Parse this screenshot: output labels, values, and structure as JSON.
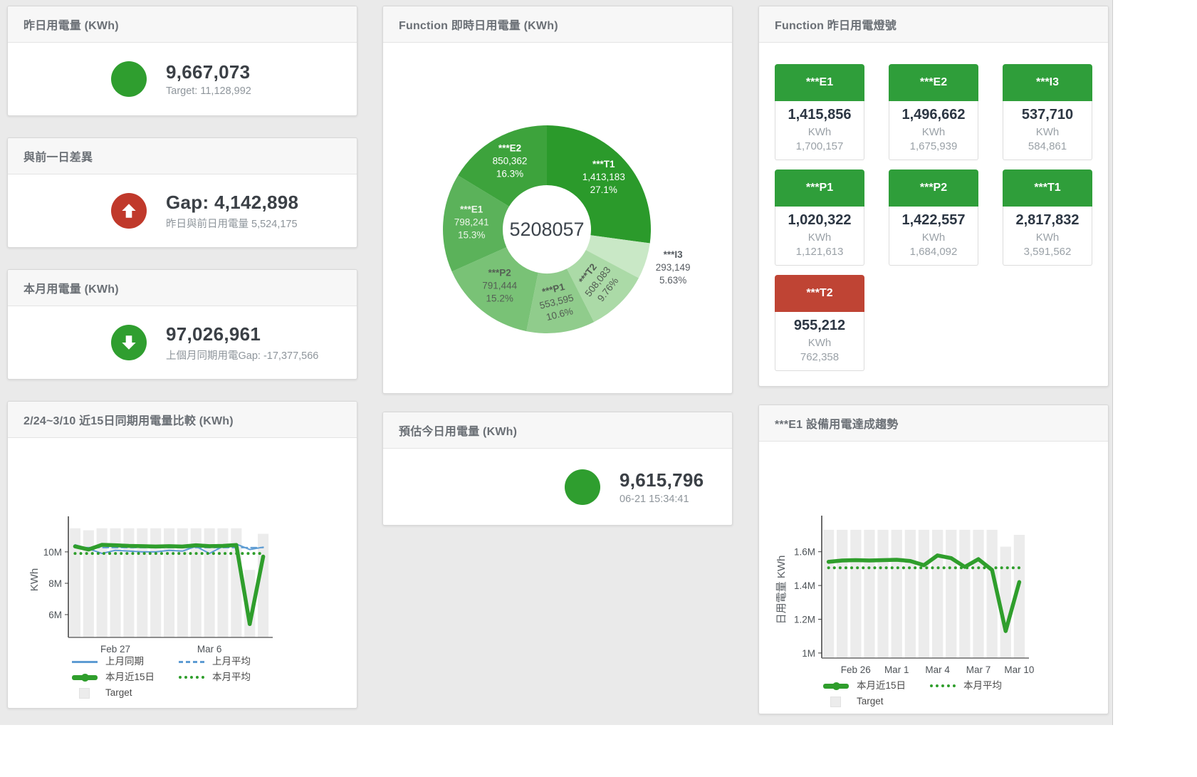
{
  "colors": {
    "green": "#2f9e2f",
    "tile_green": "#2f9e3a",
    "red": "#c0392b",
    "tile_red": "#bf4434",
    "blue": "#5e9cd3",
    "target_gray": "#ececec"
  },
  "panels": {
    "yesterday": {
      "title": "昨日用電量 (KWh)",
      "value": "9,667,073",
      "subtitle": "Target: 11,128,992"
    },
    "gap": {
      "title": "與前一日差異",
      "value": "Gap: 4,142,898",
      "subtitle": "昨日與前日用電量 5,524,175",
      "direction": "up"
    },
    "month": {
      "title": "本月用電量 (KWh)",
      "value": "97,026,961",
      "subtitle": "上個月同期用電Gap: -17,377,566",
      "direction": "down"
    },
    "estimate": {
      "title": "預估今日用電量 (KWh)",
      "value": "9,615,796",
      "subtitle": "06-21 15:34:41"
    },
    "lights": {
      "title": "Function 昨日用電燈號",
      "tiles": [
        {
          "label": "***E1",
          "value": "1,415,856",
          "unit": "KWh",
          "target": "1,700,157",
          "status": "green"
        },
        {
          "label": "***E2",
          "value": "1,496,662",
          "unit": "KWh",
          "target": "1,675,939",
          "status": "green"
        },
        {
          "label": "***I3",
          "value": "537,710",
          "unit": "KWh",
          "target": "584,861",
          "status": "green"
        },
        {
          "label": "***P1",
          "value": "1,020,322",
          "unit": "KWh",
          "target": "1,121,613",
          "status": "green"
        },
        {
          "label": "***P2",
          "value": "1,422,557",
          "unit": "KWh",
          "target": "1,684,092",
          "status": "green"
        },
        {
          "label": "***T1",
          "value": "2,817,832",
          "unit": "KWh",
          "target": "3,591,562",
          "status": "green"
        },
        {
          "label": "***T2",
          "value": "955,212",
          "unit": "KWh",
          "target": "762,358",
          "status": "red"
        }
      ]
    }
  },
  "chart_data": [
    {
      "id": "realtime-donut",
      "type": "pie",
      "title": "Function 即時日用電量 (KWh)",
      "center_total": "5208057",
      "unit": "KWh",
      "slices": [
        {
          "name": "***T1",
          "value": 1413183,
          "value_label": "1,413,183",
          "pct": "27.1%",
          "color": "#2b9a2b",
          "label_color": "#ffffff"
        },
        {
          "name": "***I3",
          "value": 293149,
          "value_label": "293,149",
          "pct": "5.63%",
          "color": "#c9e8c6",
          "label_color": "#575c62",
          "label_outside": true
        },
        {
          "name": "***T2",
          "value": 508083,
          "value_label": "508,083",
          "pct": "9.76%",
          "color": "#abdaa7",
          "label_color": "#525c52",
          "rotate": -52
        },
        {
          "name": "***P1",
          "value": 553595,
          "value_label": "553,595",
          "pct": "10.6%",
          "color": "#90cc8c",
          "label_color": "#525c52",
          "rotate": -14
        },
        {
          "name": "***P2",
          "value": 791444,
          "value_label": "791,444",
          "pct": "15.2%",
          "color": "#79c276",
          "label_color": "#556055"
        },
        {
          "name": "***E1",
          "value": 798241,
          "value_label": "798,241",
          "pct": "15.3%",
          "color": "#5bb25a",
          "label_color": "#edf5ea"
        },
        {
          "name": "***E2",
          "value": 850362,
          "value_label": "850,362",
          "pct": "16.3%",
          "color": "#3da33c",
          "label_color": "#ffffff"
        }
      ]
    },
    {
      "id": "compare-15d",
      "type": "line",
      "title": "2/24~3/10 近15日同期用電量比較 (KWh)",
      "ylabel": "KWh",
      "unit": "M KWh",
      "ylim": [
        4.55,
        11.9
      ],
      "grid": false,
      "categories": [
        "Feb 24",
        "Feb 25",
        "Feb 26",
        "Feb 27",
        "Feb 28",
        "Mar 1",
        "Mar 2",
        "Mar 3",
        "Mar 4",
        "Mar 5",
        "Mar 6",
        "Mar 7",
        "Mar 8",
        "Mar 9",
        "Mar 10"
      ],
      "yticks": [
        {
          "v": 6,
          "label": "6M"
        },
        {
          "v": 8,
          "label": "8M"
        },
        {
          "v": 10,
          "label": "10M"
        }
      ],
      "xticks": [
        {
          "i": 3,
          "label": "Feb 27"
        },
        {
          "i": 10,
          "label": "Mar 6"
        }
      ],
      "target_color": "#ececec",
      "target_name": "Target",
      "target_bars": [
        11.5,
        11.38,
        11.5,
        11.5,
        11.5,
        11.5,
        11.5,
        11.5,
        11.5,
        11.5,
        11.5,
        11.5,
        11.5,
        8.85,
        11.15
      ],
      "series": [
        {
          "name": "上月同期",
          "style": "solid",
          "width": 2,
          "color": "#5e9cd3",
          "values": [
            10.45,
            10.2,
            9.9,
            10.1,
            10.05,
            10.0,
            10.0,
            10.1,
            10.05,
            10.35,
            9.9,
            10.35,
            10.5,
            10.15,
            10.3
          ]
        },
        {
          "name": "上月平均",
          "style": "dashed",
          "width": 2,
          "color": "#5e9cd3",
          "constant": 10.27
        },
        {
          "name": "本月近15日",
          "style": "solid",
          "width": 5.5,
          "color": "#2f9e2c",
          "values": [
            10.35,
            10.15,
            10.45,
            10.42,
            10.38,
            10.36,
            10.34,
            10.36,
            10.34,
            10.42,
            10.36,
            10.38,
            10.44,
            5.4,
            9.7
          ]
        },
        {
          "name": "本月平均",
          "style": "dotted",
          "width": 4,
          "color": "#2f9e2c",
          "constant": 9.9
        }
      ],
      "legend": [
        {
          "label": "上月同期",
          "type": "line",
          "color": "#5e9cd3"
        },
        {
          "label": "上月平均",
          "type": "dash",
          "color": "#5e9cd3"
        },
        {
          "label": "本月近15日",
          "type": "thick",
          "color": "#2f9e2c"
        },
        {
          "label": "本月平均",
          "type": "dots",
          "color": "#2f9e2c"
        },
        {
          "label": "Target",
          "type": "box",
          "color": "#ececec"
        }
      ]
    },
    {
      "id": "e1-trend",
      "type": "line",
      "title": "***E1 設備用電達成趨勢",
      "ylabel": "日用電量 KWh",
      "unit": "M KWh",
      "ylim": [
        0.97,
        1.78
      ],
      "grid": false,
      "categories": [
        "Feb 24",
        "Feb 25",
        "Feb 26",
        "Feb 27",
        "Feb 28",
        "Mar 1",
        "Mar 2",
        "Mar 3",
        "Mar 4",
        "Mar 5",
        "Mar 6",
        "Mar 7",
        "Mar 8",
        "Mar 9",
        "Mar 10"
      ],
      "yticks": [
        {
          "v": 1,
          "label": "1M"
        },
        {
          "v": 1.2,
          "label": "1.2M"
        },
        {
          "v": 1.4,
          "label": "1.4M"
        },
        {
          "v": 1.6,
          "label": "1.6M"
        }
      ],
      "xticks": [
        {
          "i": 2,
          "label": "Feb 26"
        },
        {
          "i": 5,
          "label": "Mar 1"
        },
        {
          "i": 8,
          "label": "Mar 4"
        },
        {
          "i": 11,
          "label": "Mar 7"
        },
        {
          "i": 14,
          "label": "Mar 10"
        }
      ],
      "target_color": "#ececec",
      "target_name": "Target",
      "target_bars": [
        1.73,
        1.73,
        1.73,
        1.73,
        1.73,
        1.73,
        1.73,
        1.73,
        1.73,
        1.73,
        1.73,
        1.73,
        1.73,
        1.63,
        1.7
      ],
      "series": [
        {
          "name": "本月近15日",
          "style": "solid",
          "width": 5.5,
          "color": "#2f9e2c",
          "values": [
            1.54,
            1.548,
            1.55,
            1.548,
            1.55,
            1.552,
            1.545,
            1.52,
            1.578,
            1.562,
            1.51,
            1.556,
            1.492,
            1.13,
            1.42
          ]
        },
        {
          "name": "本月平均",
          "style": "dotted",
          "width": 4,
          "color": "#2f9e2c",
          "constant": 1.505
        }
      ],
      "legend": [
        {
          "label": "本月近15日",
          "type": "thick",
          "color": "#2f9e2c"
        },
        {
          "label": "本月平均",
          "type": "dots",
          "color": "#2f9e2c"
        },
        {
          "label": "Target",
          "type": "box",
          "color": "#ececec"
        }
      ]
    }
  ]
}
